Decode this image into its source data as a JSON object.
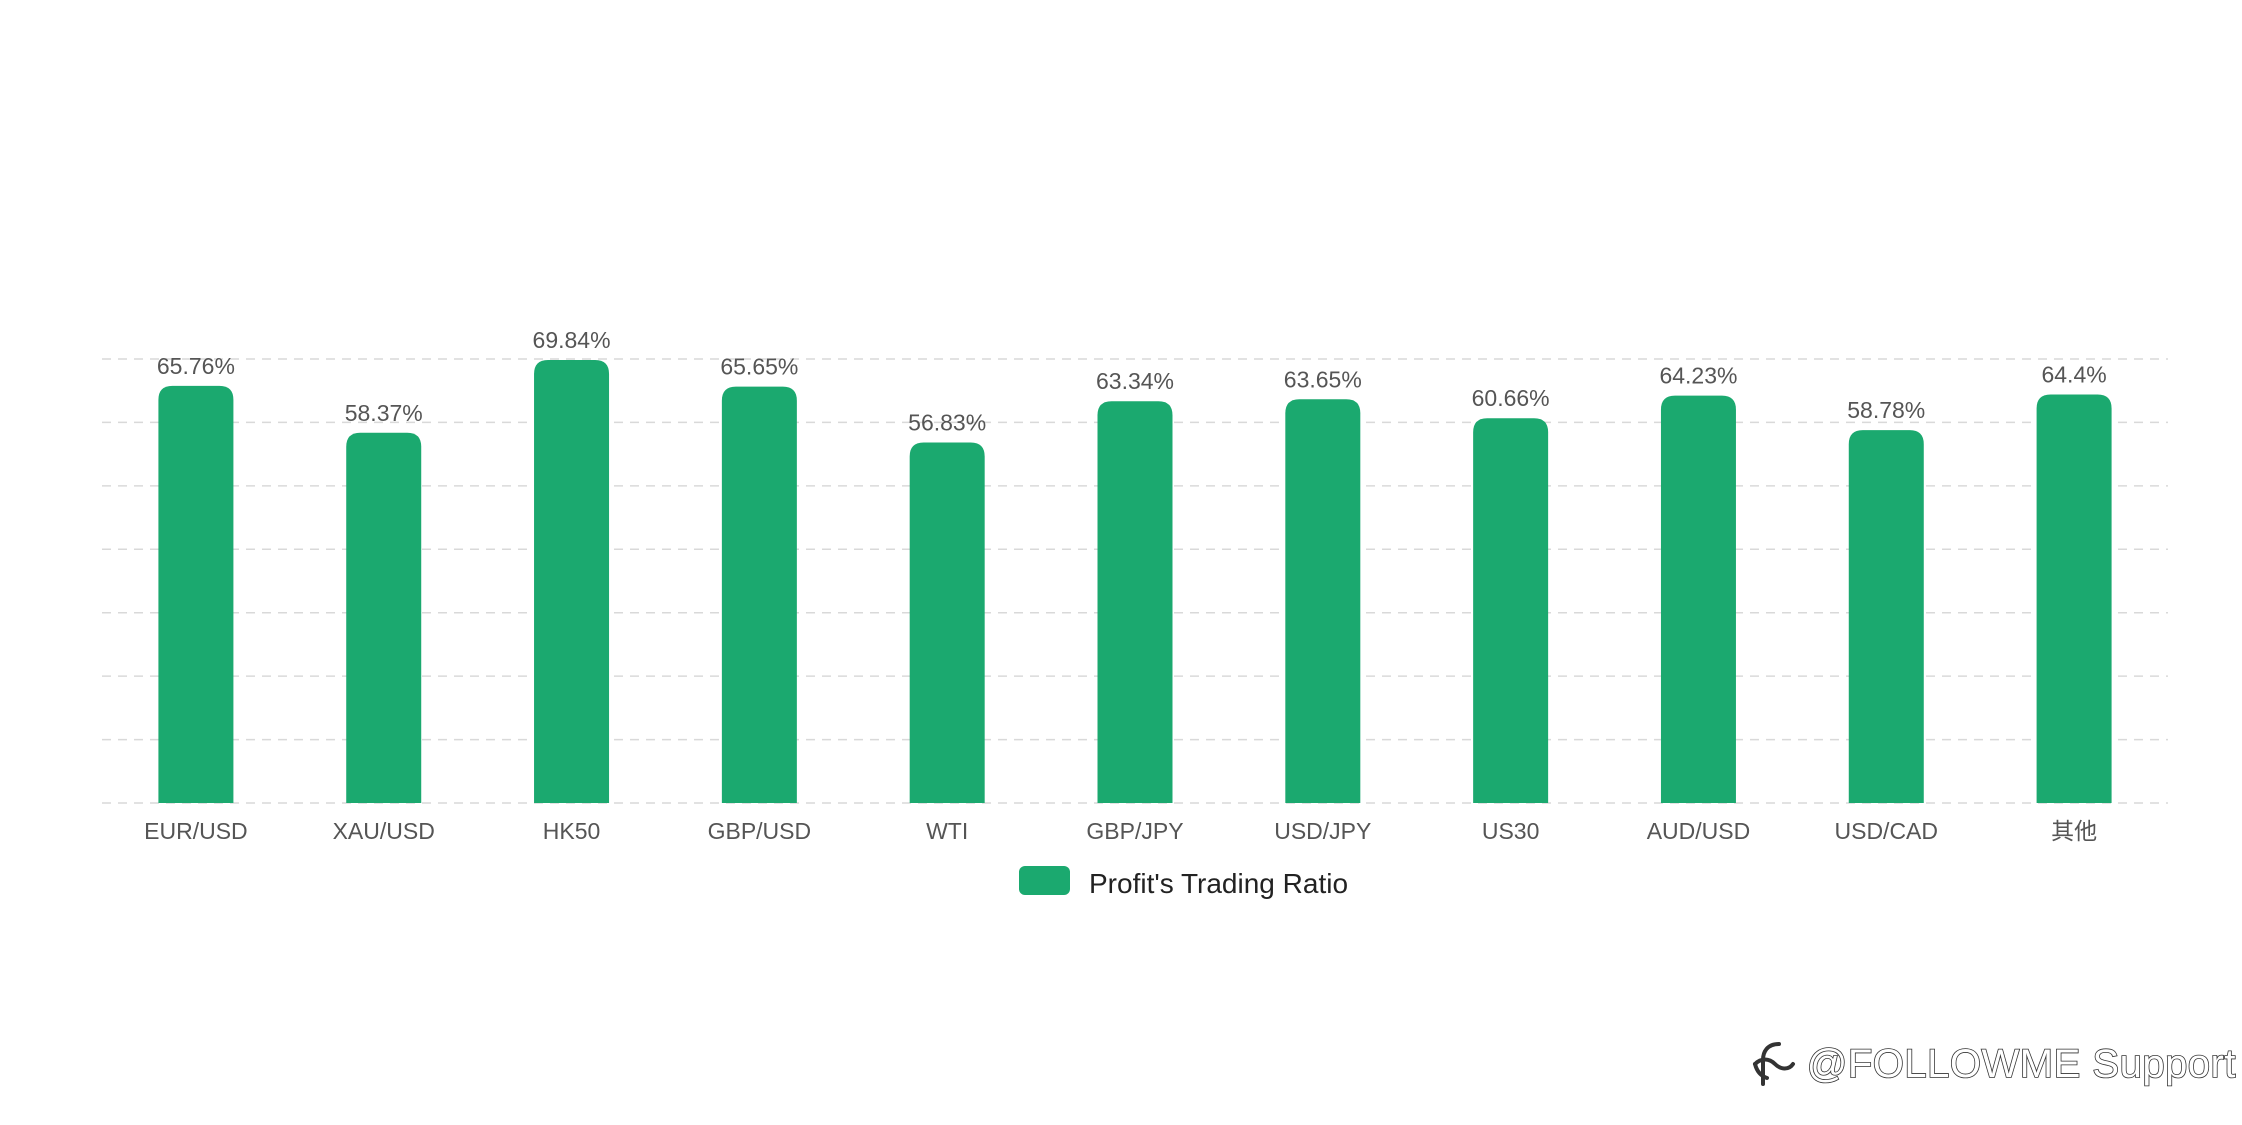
{
  "chart_data": {
    "type": "bar",
    "categories": [
      "EUR/USD",
      "XAU/USD",
      "HK50",
      "GBP/USD",
      "WTI",
      "GBP/JPY",
      "USD/JPY",
      "US30",
      "AUD/USD",
      "USD/CAD",
      "其他"
    ],
    "series": [
      {
        "name": "Profit's Trading Ratio",
        "values": [
          65.76,
          58.37,
          69.84,
          65.65,
          56.83,
          63.34,
          63.65,
          60.66,
          64.23,
          58.78,
          64.4
        ],
        "labels": [
          "65.76%",
          "58.37%",
          "69.84%",
          "65.65%",
          "56.83%",
          "63.34%",
          "63.65%",
          "60.66%",
          "64.23%",
          "58.78%",
          "64.4%"
        ],
        "color": "#1ba96f"
      }
    ],
    "title": "",
    "xlabel": "",
    "ylabel": "",
    "ylim": [
      0,
      70
    ],
    "grid": true,
    "legend": "bottom"
  },
  "watermark": {
    "text": "@FOLLOWME Support",
    "icon": "followme-logo-icon"
  }
}
